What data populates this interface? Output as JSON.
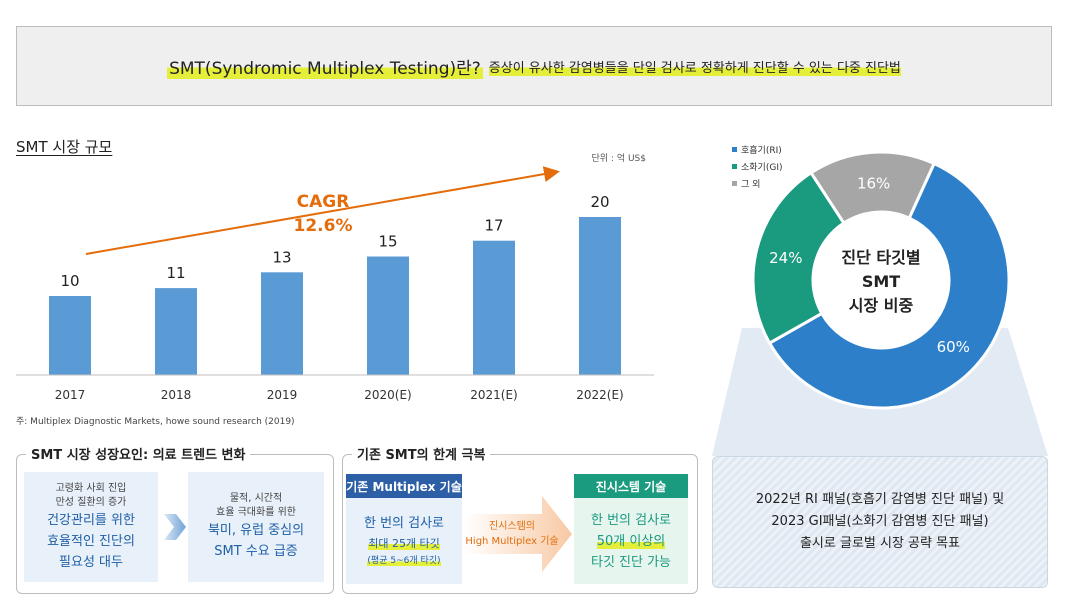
{
  "banner": {
    "title": "SMT(Syndromic Multiplex Testing)란?",
    "description": "증상이 유사한 감염병들을 단일 검사로 정확하게 진단할 수 있는 다중 진단법"
  },
  "market": {
    "section_title": "SMT 시장 규모",
    "source": "주: Multiplex Diagnostic Markets, howe sound research (2019)"
  },
  "chart_data": [
    {
      "type": "bar",
      "title": "SMT 시장 규모",
      "unit_label": "단위 : 억 US$",
      "categories": [
        "2017",
        "2018",
        "2019",
        "2020(E)",
        "2021(E)",
        "2022(E)"
      ],
      "values": [
        10,
        11,
        13,
        15,
        17,
        20
      ],
      "ylim": [
        0,
        20
      ],
      "annotation": {
        "line1": "CAGR",
        "line2": "12.6%"
      },
      "colors": {
        "bar": "#5b9bd5",
        "annotation": "#e46c0a"
      }
    },
    {
      "type": "pie",
      "title": "진단 타깃별 SMT 시장 비중",
      "center_lines": [
        "진단 타깃별",
        "SMT",
        "시장 비중"
      ],
      "labels": [
        "호흡기(RI)",
        "소화기(GI)",
        "그 외"
      ],
      "values": [
        60,
        24,
        16
      ],
      "value_labels": [
        "60%",
        "24%",
        "16%"
      ],
      "colors": [
        "#2e7fc9",
        "#1a9a7f",
        "#a6a6a6"
      ]
    }
  ],
  "growth": {
    "title": "SMT 시장 성장요인: 의료 트렌드 변화",
    "left": {
      "small1": "고령화 사회 진입",
      "small2": "만성 질환의 증가",
      "big1": "건강관리를 위한",
      "big2": "효율적인 진단의",
      "big3": "필요성 대두"
    },
    "right": {
      "small1": "물적, 시간적",
      "small2": "효율 극대화를 위한",
      "big1": "북미, 유럽 중심의",
      "big2": "SMT 수요 급증"
    }
  },
  "limits": {
    "title": "기존 SMT의 한계 극복",
    "old": {
      "header": "기존 Multiplex 기술",
      "line1": "한 번의 검사로",
      "line2": "최대 25개 타깃",
      "line3": "(평균 5~6개 타깃)"
    },
    "arrow": {
      "line1": "진시스템의",
      "line2": "High Multiplex 기술"
    },
    "new": {
      "header": "진시스템 기술",
      "line1": "한 번의 검사로",
      "line2": "50개 이상의",
      "line3": "타깃 진단 가능"
    }
  },
  "summary": {
    "line1": "2022년 RI 패널(호흡기 감염병 진단 패널) 및",
    "line2": "2023 GI패널(소화기 감염병 진단 패널)",
    "line3": "출시로 글로벌 시장 공략 목표"
  }
}
